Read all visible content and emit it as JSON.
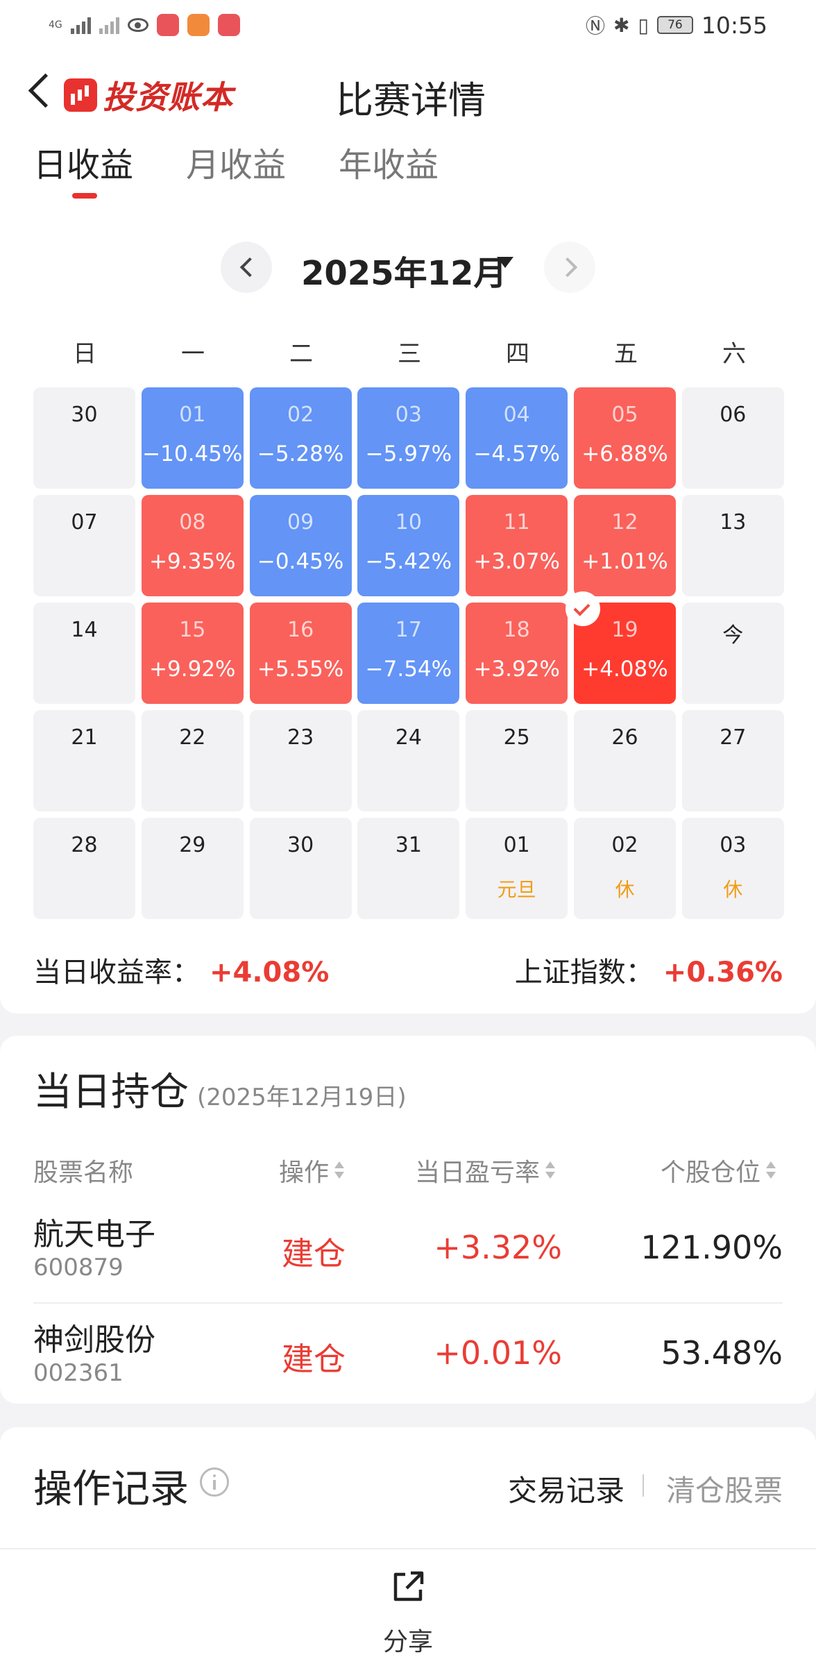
{
  "status_bar": {
    "network": "4G",
    "battery": "76",
    "time": "10:55"
  },
  "header": {
    "app_name": "投资账本",
    "title": "比赛详情"
  },
  "tabs": [
    {
      "label": "日收益",
      "active": true
    },
    {
      "label": "月收益",
      "active": false
    },
    {
      "label": "年收益",
      "active": false
    }
  ],
  "calendar": {
    "month_label": "2025年12月",
    "weekdays": [
      "日",
      "一",
      "二",
      "三",
      "四",
      "五",
      "六"
    ],
    "cells": [
      {
        "day": "30",
        "value": "",
        "type": "plain"
      },
      {
        "day": "01",
        "value": "−10.45%",
        "type": "blue"
      },
      {
        "day": "02",
        "value": "−5.28%",
        "type": "blue"
      },
      {
        "day": "03",
        "value": "−5.97%",
        "type": "blue"
      },
      {
        "day": "04",
        "value": "−4.57%",
        "type": "blue"
      },
      {
        "day": "05",
        "value": "+6.88%",
        "type": "red"
      },
      {
        "day": "06",
        "value": "",
        "type": "plain"
      },
      {
        "day": "07",
        "value": "",
        "type": "plain"
      },
      {
        "day": "08",
        "value": "+9.35%",
        "type": "red"
      },
      {
        "day": "09",
        "value": "−0.45%",
        "type": "blue"
      },
      {
        "day": "10",
        "value": "−5.42%",
        "type": "blue"
      },
      {
        "day": "11",
        "value": "+3.07%",
        "type": "red"
      },
      {
        "day": "12",
        "value": "+1.01%",
        "type": "red"
      },
      {
        "day": "13",
        "value": "",
        "type": "plain"
      },
      {
        "day": "14",
        "value": "",
        "type": "plain"
      },
      {
        "day": "15",
        "value": "+9.92%",
        "type": "red"
      },
      {
        "day": "16",
        "value": "+5.55%",
        "type": "red"
      },
      {
        "day": "17",
        "value": "−7.54%",
        "type": "blue"
      },
      {
        "day": "18",
        "value": "+3.92%",
        "type": "red"
      },
      {
        "day": "19",
        "value": "+4.08%",
        "type": "sel"
      },
      {
        "day": "今",
        "value": "",
        "type": "plain"
      },
      {
        "day": "21",
        "value": "",
        "type": "plain"
      },
      {
        "day": "22",
        "value": "",
        "type": "plain"
      },
      {
        "day": "23",
        "value": "",
        "type": "plain"
      },
      {
        "day": "24",
        "value": "",
        "type": "plain"
      },
      {
        "day": "25",
        "value": "",
        "type": "plain"
      },
      {
        "day": "26",
        "value": "",
        "type": "plain"
      },
      {
        "day": "27",
        "value": "",
        "type": "plain"
      },
      {
        "day": "28",
        "value": "",
        "type": "plain"
      },
      {
        "day": "29",
        "value": "",
        "type": "plain"
      },
      {
        "day": "30",
        "value": "",
        "type": "plain"
      },
      {
        "day": "31",
        "value": "",
        "type": "plain"
      },
      {
        "day": "01",
        "value": "",
        "holiday": "元旦",
        "type": "plain"
      },
      {
        "day": "02",
        "value": "",
        "holiday": "休",
        "type": "plain"
      },
      {
        "day": "03",
        "value": "",
        "holiday": "休",
        "type": "plain"
      }
    ]
  },
  "summary": {
    "daily_label": "当日收益率：",
    "daily_value": "+4.08%",
    "index_label": "上证指数：",
    "index_value": "+0.36%"
  },
  "holdings": {
    "title": "当日持仓",
    "date": "(2025年12月19日)",
    "columns": [
      "股票名称",
      "操作",
      "当日盈亏率",
      "个股仓位"
    ],
    "rows": [
      {
        "name": "航天电子",
        "code": "600879",
        "op": "建仓",
        "rate": "+3.32%",
        "position": "121.90%"
      },
      {
        "name": "神剑股份",
        "code": "002361",
        "op": "建仓",
        "rate": "+0.01%",
        "position": "53.48%"
      }
    ]
  },
  "records": {
    "title": "操作记录",
    "tab_trades": "交易记录",
    "tab_cleared": "清仓股票"
  },
  "bottom": {
    "share_label": "分享"
  },
  "colors": {
    "accent_red": "#ea3c34",
    "loss_blue": "#6394f6",
    "gain_red": "#fa615b",
    "selected_red": "#ff3b30",
    "holiday_orange": "#f29c16"
  }
}
